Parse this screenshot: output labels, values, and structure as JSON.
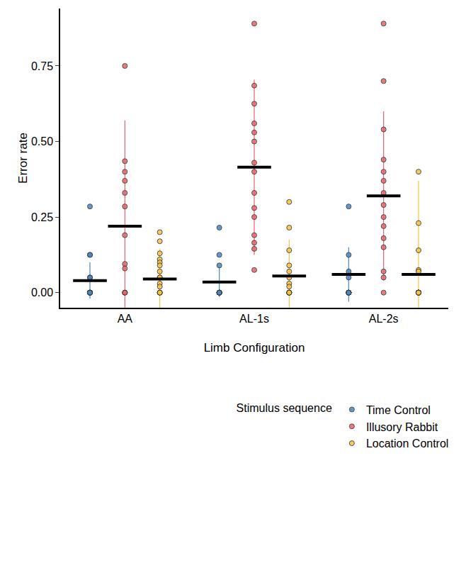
{
  "chart_data": {
    "type": "strip",
    "x_label": "Limb Configuration",
    "y_label": "Error rate",
    "categories": [
      "AA",
      "AL-1s",
      "AL-2s"
    ],
    "ylim": [
      -0.05,
      0.94
    ],
    "yticks": [
      {
        "value": 0,
        "label": "0.00"
      },
      {
        "value": 0.25,
        "label": "0.25"
      },
      {
        "value": 0.5,
        "label": "0.50"
      },
      {
        "value": 0.75,
        "label": "0.75"
      }
    ],
    "grid": false,
    "legend": "bottom",
    "legend_title": "Stimulus sequence",
    "marker": "circle",
    "series": [
      {
        "name": "Time Control",
        "color": "#4a86c0",
        "values": [
          [
            0.285,
            0.125,
            0.125,
            0.05,
            0.05,
            0,
            0,
            0,
            0,
            0,
            0,
            0,
            0,
            0,
            0
          ],
          [
            0.215,
            0.125,
            0.09,
            0,
            0,
            0,
            0,
            0,
            0,
            0,
            0,
            0,
            0,
            0,
            0
          ],
          [
            0.285,
            0.125,
            0.07,
            0.05,
            0,
            0,
            0,
            0,
            0,
            0,
            0,
            0,
            0,
            0,
            0
          ]
        ],
        "means": [
          0.04,
          0.035,
          0.06
        ],
        "error": [
          0.06,
          0.05,
          0.09
        ]
      },
      {
        "name": "Illusory Rabbit",
        "color": "#e8636b",
        "values": [
          [
            0.75,
            0.435,
            0.4,
            0.37,
            0.33,
            0.285,
            0.19,
            0.095,
            0.08,
            0,
            0,
            0
          ],
          [
            0.89,
            0.685,
            0.625,
            0.56,
            0.53,
            0.5,
            0.43,
            0.4,
            0.33,
            0.28,
            0.25,
            0.19,
            0.165,
            0.145,
            0.075
          ],
          [
            0.89,
            0.7,
            0.54,
            0.44,
            0.4,
            0.37,
            0.33,
            0.29,
            0.25,
            0.22,
            0.18,
            0.15,
            0.07,
            0.05,
            0
          ]
        ],
        "means": [
          0.22,
          0.415,
          0.32
        ],
        "error": [
          0.35,
          0.29,
          0.28
        ]
      },
      {
        "name": "Location Control",
        "color": "#f5c242",
        "values": [
          [
            0.2,
            0.17,
            0.13,
            0.11,
            0.1,
            0.09,
            0.07,
            0.05,
            0.05,
            0.03,
            0.02,
            0,
            0,
            0,
            0
          ],
          [
            0.3,
            0.215,
            0.14,
            0.09,
            0.07,
            0.05,
            0.03,
            0.02,
            0,
            0,
            0,
            0,
            0,
            0,
            0
          ],
          [
            0.4,
            0.23,
            0.14,
            0.075,
            0.07,
            0,
            0,
            0,
            0,
            0,
            0,
            0,
            0,
            0,
            0
          ]
        ],
        "means": [
          0.045,
          0.055,
          0.06
        ],
        "error": [
          0.1,
          0.12,
          0.31
        ]
      }
    ]
  }
}
